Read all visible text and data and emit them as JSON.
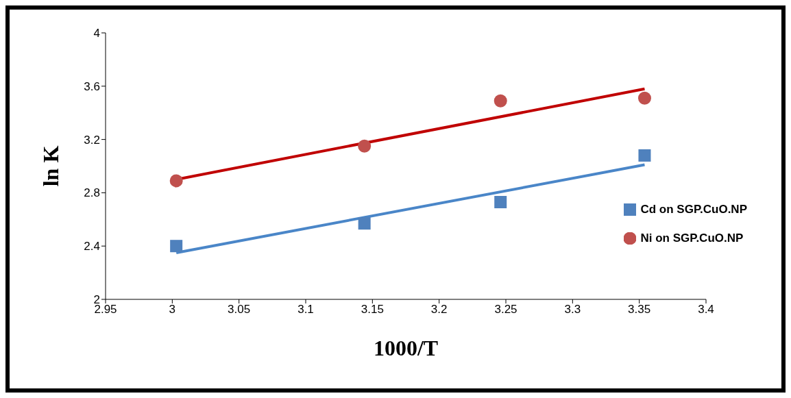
{
  "chart_data": {
    "type": "scatter",
    "xlabel": "1000/T",
    "ylabel": "ln K",
    "xlim": [
      2.95,
      3.4
    ],
    "xticks": [
      2.95,
      3,
      3.05,
      3.1,
      3.15,
      3.2,
      3.25,
      3.3,
      3.35,
      3.4
    ],
    "ylim": [
      2,
      4
    ],
    "yticks": [
      2,
      2.4,
      2.8,
      3.2,
      3.6,
      4
    ],
    "grid": false,
    "legend": "right",
    "series": [
      {
        "name": "Cd on SGP.CuO.NP",
        "marker": "square",
        "color": "#4f81bd",
        "x": [
          3.003,
          3.144,
          3.246,
          3.354
        ],
        "values": [
          2.4,
          2.57,
          2.73,
          3.08
        ]
      },
      {
        "name": "Ni on SGP.CuO.NP",
        "marker": "circle",
        "color": "#c0504d",
        "x": [
          3.003,
          3.144,
          3.246,
          3.354
        ],
        "values": [
          2.89,
          3.15,
          3.49,
          3.51
        ]
      },
      {
        "type": "line",
        "marker": "none",
        "line_style": "solid",
        "color": "#4a86c8",
        "x": [
          3.003,
          3.354
        ],
        "values": [
          2.35,
          3.01
        ]
      },
      {
        "type": "line",
        "marker": "none",
        "line_style": "solid",
        "color": "#c00000",
        "x": [
          3.003,
          3.354
        ],
        "values": [
          2.9,
          3.58
        ]
      }
    ]
  }
}
